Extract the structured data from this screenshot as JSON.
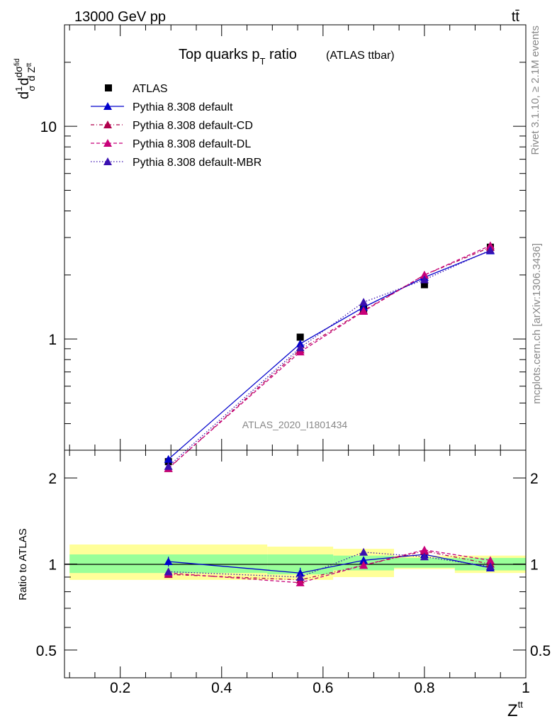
{
  "header": {
    "energy_label": "13000 GeV pp",
    "process_label": "tt̄"
  },
  "side_labels": {
    "rivet": "Rivet 3.1.10, ≥ 2.1M events",
    "mcplots": "mcplots.cern.ch [arXiv:1306.3436]"
  },
  "colors": {
    "atlas": "#000000",
    "default": "#0000cc",
    "cd": "#b0004c",
    "dl": "#c8007a",
    "mbr": "#3a10b0",
    "band_inner": "#99ff99",
    "band_outer": "#ffff99"
  },
  "chart_data": [
    {
      "type": "line",
      "title": "Top quarks p",
      "title_sub": "T",
      "title_tail": " ratio",
      "title_note": "(ATLAS ttbar)",
      "analysis_label": "ATLAS_2020_I1801434",
      "ylabel": "d(1/σ)dσ^fid / d Z^tt",
      "yscale": "log",
      "ylim": [
        0.3,
        30
      ],
      "xlim": [
        0.09,
        1.0
      ],
      "ytick_labels": [
        "1",
        "10"
      ],
      "legend_location": "top-left",
      "series": [
        {
          "name": "ATLAS",
          "style": "data",
          "x": [
            0.295,
            0.555,
            0.68,
            0.8,
            0.93
          ],
          "y": [
            0.265,
            1.02,
            1.38,
            1.8,
            2.7
          ],
          "yerr": [
            0.01,
            0.03,
            0.04,
            0.05,
            0.07
          ]
        },
        {
          "name": "Pythia 8.308 default",
          "style": "solid",
          "x": [
            0.295,
            0.555,
            0.68,
            0.8,
            0.93
          ],
          "y": [
            0.272,
            0.95,
            1.41,
            1.95,
            2.6
          ]
        },
        {
          "name": "Pythia 8.308 default-CD",
          "style": "dashdot",
          "x": [
            0.295,
            0.555,
            0.68,
            0.8,
            0.93
          ],
          "y": [
            0.246,
            0.89,
            1.36,
            2.0,
            2.7
          ]
        },
        {
          "name": "Pythia 8.308 default-DL",
          "style": "dash",
          "x": [
            0.295,
            0.555,
            0.68,
            0.8,
            0.93
          ],
          "y": [
            0.247,
            0.87,
            1.35,
            2.0,
            2.75
          ]
        },
        {
          "name": "Pythia 8.308 default-MBR",
          "style": "dot",
          "x": [
            0.295,
            0.555,
            0.68,
            0.8,
            0.93
          ],
          "y": [
            0.252,
            0.91,
            1.49,
            1.9,
            2.62
          ]
        }
      ]
    },
    {
      "type": "line",
      "ylabel": "Ratio to ATLAS",
      "xlabel": "Z",
      "xlabel_sup": "tt",
      "yscale": "log",
      "ylim": [
        0.4,
        2.5
      ],
      "xlim": [
        0.09,
        1.0
      ],
      "xticks": [
        0.2,
        0.4,
        0.6,
        0.8,
        1.0
      ],
      "xtick_labels": [
        "0.2",
        "0.4",
        "0.6",
        "0.8",
        "1"
      ],
      "yticks": [
        0.5,
        1,
        2
      ],
      "ytick_labels": [
        "0.5",
        "1",
        "2"
      ],
      "bands": {
        "bin_edges": [
          0.1,
          0.49,
          0.62,
          0.74,
          0.86,
          1.0
        ],
        "inner": [
          [
            0.93,
            1.08
          ],
          [
            0.92,
            1.08
          ],
          [
            0.95,
            1.07
          ],
          [
            0.97,
            1.05
          ],
          [
            0.95,
            1.05
          ]
        ],
        "outer": [
          [
            0.88,
            1.17
          ],
          [
            0.88,
            1.15
          ],
          [
            0.9,
            1.13
          ],
          [
            0.96,
            1.07
          ],
          [
            0.93,
            1.07
          ]
        ]
      },
      "series": [
        {
          "name": "Pythia 8.308 default",
          "style": "solid",
          "x": [
            0.295,
            0.555,
            0.68,
            0.8,
            0.93
          ],
          "y": [
            1.02,
            0.93,
            1.03,
            1.08,
            0.97
          ],
          "yerr": [
            0.04,
            0.04,
            0.03,
            0.03,
            0.02
          ]
        },
        {
          "name": "Pythia 8.308 default-CD",
          "style": "dashdot",
          "x": [
            0.295,
            0.555,
            0.68,
            0.8,
            0.93
          ],
          "y": [
            0.92,
            0.88,
            0.99,
            1.11,
            1.0
          ]
        },
        {
          "name": "Pythia 8.308 default-DL",
          "style": "dash",
          "x": [
            0.295,
            0.555,
            0.68,
            0.8,
            0.93
          ],
          "y": [
            0.93,
            0.86,
            0.99,
            1.12,
            1.03
          ]
        },
        {
          "name": "Pythia 8.308 default-MBR",
          "style": "dot",
          "x": [
            0.295,
            0.555,
            0.68,
            0.8,
            0.93
          ],
          "y": [
            0.94,
            0.9,
            1.1,
            1.06,
            0.98
          ]
        }
      ]
    }
  ]
}
